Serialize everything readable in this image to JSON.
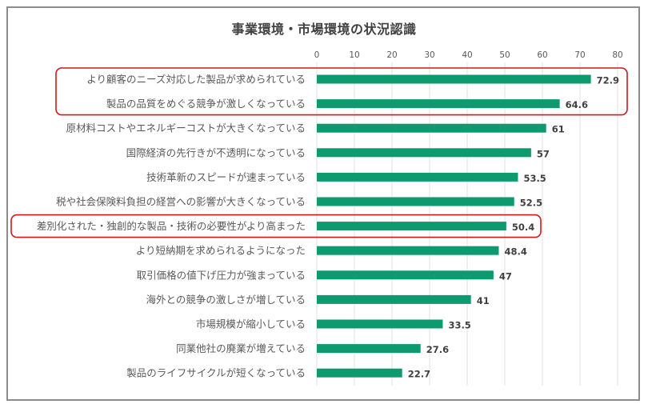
{
  "chart_data": {
    "type": "bar",
    "orientation": "horizontal",
    "title": "事業環境・市場環境の状況認識",
    "xlim": [
      0,
      80
    ],
    "ticks": [
      0,
      10,
      20,
      30,
      40,
      50,
      60,
      70,
      80
    ],
    "tick_position": "top",
    "grid": true,
    "bar_color": "#0e9a6f",
    "highlight_color": "#d01818",
    "categories": [
      "より顧客のニーズ対応した製品が求められている",
      "製品の品質をめぐる競争が激しくなっている",
      "原材料コストやエネルギーコストが大きくなっている",
      "国際経済の先行きが不透明になっている",
      "技術革新のスピードが速まっている",
      "税や社会保険料負担の経営への影響が大きくなっている",
      "差別化された・独創的な製品・技術の必要性がより高まった",
      "より短納期を求められるようになった",
      "取引価格の値下げ圧力が強まっている",
      "海外との競争の激しさが増している",
      "市場規模が縮小している",
      "同業他社の廃業が増えている",
      "製品のライフサイクルが短くなっている"
    ],
    "values": [
      72.9,
      64.6,
      61,
      57,
      53.5,
      52.5,
      50.4,
      48.4,
      47,
      41,
      33.5,
      27.6,
      22.7
    ],
    "value_labels": [
      "72.9",
      "64.6",
      "61",
      "57",
      "53.5",
      "52.5",
      "50.4",
      "48.4",
      "47",
      "41",
      "33.5",
      "27.6",
      "22.7"
    ],
    "highlight_groups": [
      [
        0,
        1
      ],
      [
        6
      ]
    ]
  }
}
